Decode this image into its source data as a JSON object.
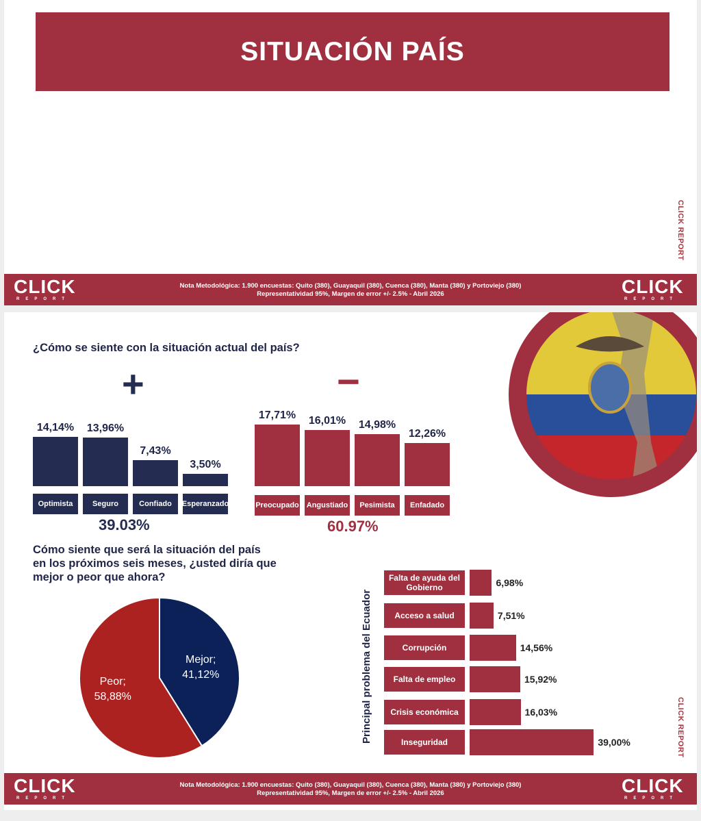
{
  "slide1": {
    "title": "SITUACIÓN PAÍS",
    "side_brand": "CLICK REPORT"
  },
  "footer": {
    "logo_text": "CLICK",
    "logo_sub": "REPORT",
    "note_line1": "Nota Metodológica: 1.900 encuestas: Quito (380), Guayaquil (380), Cuenca (380), Manta (380) y Portoviejo (380)",
    "note_line2": "Representatividad 95%, Margen de error +/- 2.5% - Abril 2026"
  },
  "slide2": {
    "side_brand": "CLICK REPORT",
    "plus_symbol": "+",
    "minus_symbol": "−"
  },
  "colors": {
    "navy": "#252c52",
    "red": "#a0303f",
    "pie_blue": "#0c2157",
    "pie_red": "#ac2220"
  },
  "chart_data": [
    {
      "type": "bar",
      "title": "¿Cómo se siente con la situación actual del país?",
      "series": [
        {
          "name": "positive",
          "categories": [
            "Optimista",
            "Seguro",
            "Confiado",
            "Esperanzado"
          ],
          "values": [
            14.14,
            13.96,
            7.43,
            3.5
          ],
          "labels": [
            "14,14%",
            "13,96%",
            "7,43%",
            "3,50%"
          ],
          "total": "39.03%"
        },
        {
          "name": "negative",
          "categories": [
            "Preocupado",
            "Angustiado",
            "Pesimista",
            "Enfadado"
          ],
          "values": [
            17.71,
            16.01,
            14.98,
            12.26
          ],
          "labels": [
            "17,71%",
            "16,01%",
            "14,98%",
            "12,26%"
          ],
          "total": "60.97%"
        }
      ]
    },
    {
      "type": "pie",
      "title_lines": [
        "Cómo siente que será la situación del país",
        "en los próximos seis meses, ¿usted diría que",
        "mejor o peor que ahora?"
      ],
      "slices": [
        {
          "name": "Mejor;",
          "value": 41.12,
          "label": "41,12%"
        },
        {
          "name": "Peor;",
          "value": 58.88,
          "label": "58,88%"
        }
      ]
    },
    {
      "type": "bar",
      "orientation": "horizontal",
      "ylabel": "Principal problema del Ecuador",
      "categories": [
        "Falta de ayuda del Gobierno",
        "Acceso a salud",
        "Corrupción",
        "Falta de empleo",
        "Crisis económica",
        "Inseguridad"
      ],
      "values": [
        6.98,
        7.51,
        14.56,
        15.92,
        16.03,
        39.0
      ],
      "labels": [
        "6,98%",
        "7,51%",
        "14,56%",
        "15,92%",
        "16,03%",
        "39,00%"
      ]
    }
  ]
}
